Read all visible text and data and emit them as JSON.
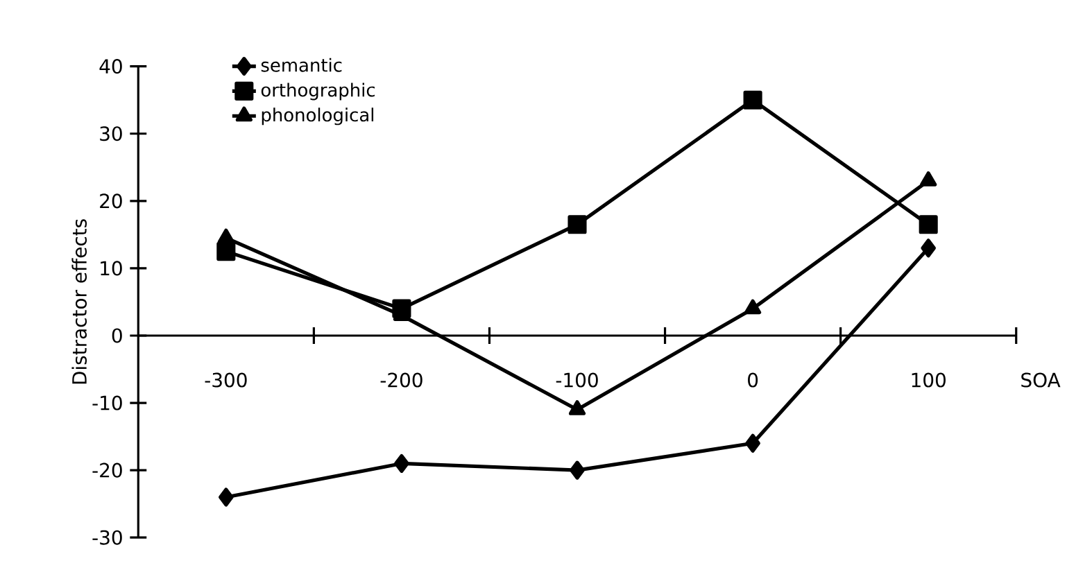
{
  "chart_data": {
    "type": "line",
    "xlabel": "SOA",
    "ylabel": "Distractor effects",
    "categories": [
      "-300",
      "-200",
      "-100",
      "0",
      "100"
    ],
    "series": [
      {
        "name": "semantic",
        "color": "#000000",
        "marker": "diamond",
        "values": [
          -24,
          -19,
          -20,
          -16,
          13
        ]
      },
      {
        "name": "orthographic",
        "color": "#000000",
        "marker": "square",
        "values": [
          12.5,
          4,
          16.5,
          35,
          16.5
        ]
      },
      {
        "name": "phonological",
        "color": "#000000",
        "marker": "triangle",
        "values": [
          14.5,
          3,
          -11,
          4,
          23
        ]
      }
    ],
    "ylim": [
      -30,
      40
    ],
    "yticks": [
      -30,
      -20,
      -10,
      0,
      10,
      20,
      30,
      40
    ],
    "grid": false,
    "legend": "top left",
    "line_style": "solid"
  }
}
